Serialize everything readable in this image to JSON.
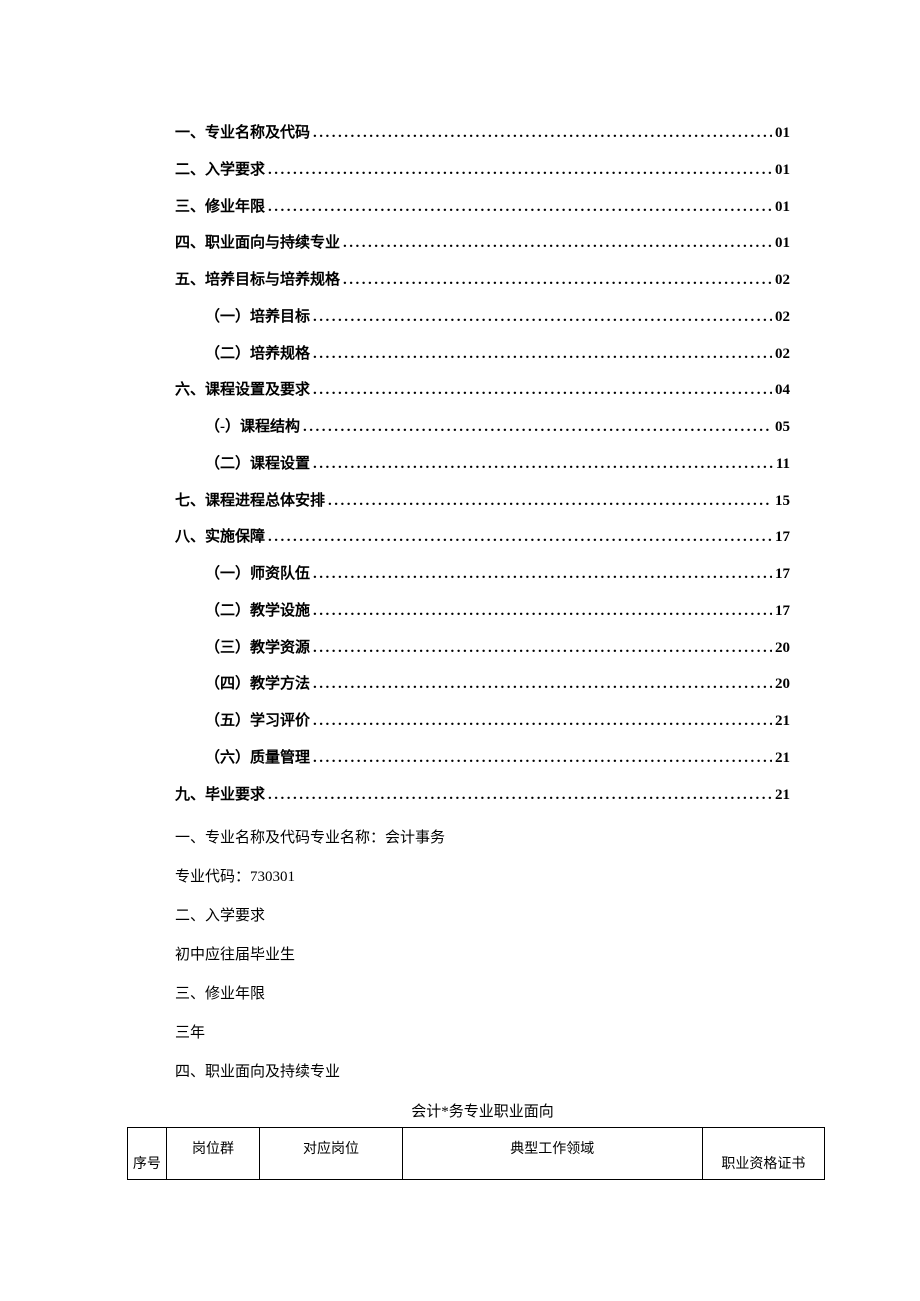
{
  "toc": [
    {
      "label": "一、专业名称及代码",
      "page": "01",
      "sub": false
    },
    {
      "label": "二、入学要求",
      "page": "01",
      "sub": false
    },
    {
      "label": "三、修业年限",
      "page": "01",
      "sub": false
    },
    {
      "label": "四、职业面向与持续专业",
      "page": "01",
      "sub": false
    },
    {
      "label": "五、培养目标与培养规格",
      "page": "02",
      "sub": false
    },
    {
      "label": "（一）培养目标",
      "page": "02",
      "sub": true
    },
    {
      "label": "（二）培养规格",
      "page": "02",
      "sub": true
    },
    {
      "label": "六、课程设置及要求",
      "page": "04",
      "sub": false
    },
    {
      "label": "（-）课程结构",
      "page": "05",
      "sub": true
    },
    {
      "label": "（二）课程设置",
      "page": "11",
      "sub": true
    },
    {
      "label": "七、课程进程总体安排",
      "page": "15",
      "sub": false
    },
    {
      "label": "八、实施保障",
      "page": "17",
      "sub": false
    },
    {
      "label": "（一）师资队伍",
      "page": "17",
      "sub": true
    },
    {
      "label": "（二）教学设施",
      "page": "17",
      "sub": true
    },
    {
      "label": "（三）教学资源",
      "page": "20",
      "sub": true
    },
    {
      "label": "（四）教学方法",
      "page": "20",
      "sub": true
    },
    {
      "label": "（五）学习评价",
      "page": "21",
      "sub": true
    },
    {
      "label": "（六）质量管理",
      "page": "21",
      "sub": true
    },
    {
      "label": "九、毕业要求",
      "page": "21",
      "sub": false
    }
  ],
  "body": {
    "l1": "一、专业名称及代码专业名称：会计事务",
    "l2": "专业代码：730301",
    "l3": "二、入学要求",
    "l4": "初中应往届毕业生",
    "l5": "三、修业年限",
    "l6": "三年",
    "l7": "四、职业面向及持续专业"
  },
  "table": {
    "title": "会计*务专业职业面向",
    "headers": {
      "seq": "序号",
      "c1": "岗位群",
      "c2": "对应岗位",
      "c3": "典型工作领域",
      "c4": "职业资格证书"
    }
  }
}
